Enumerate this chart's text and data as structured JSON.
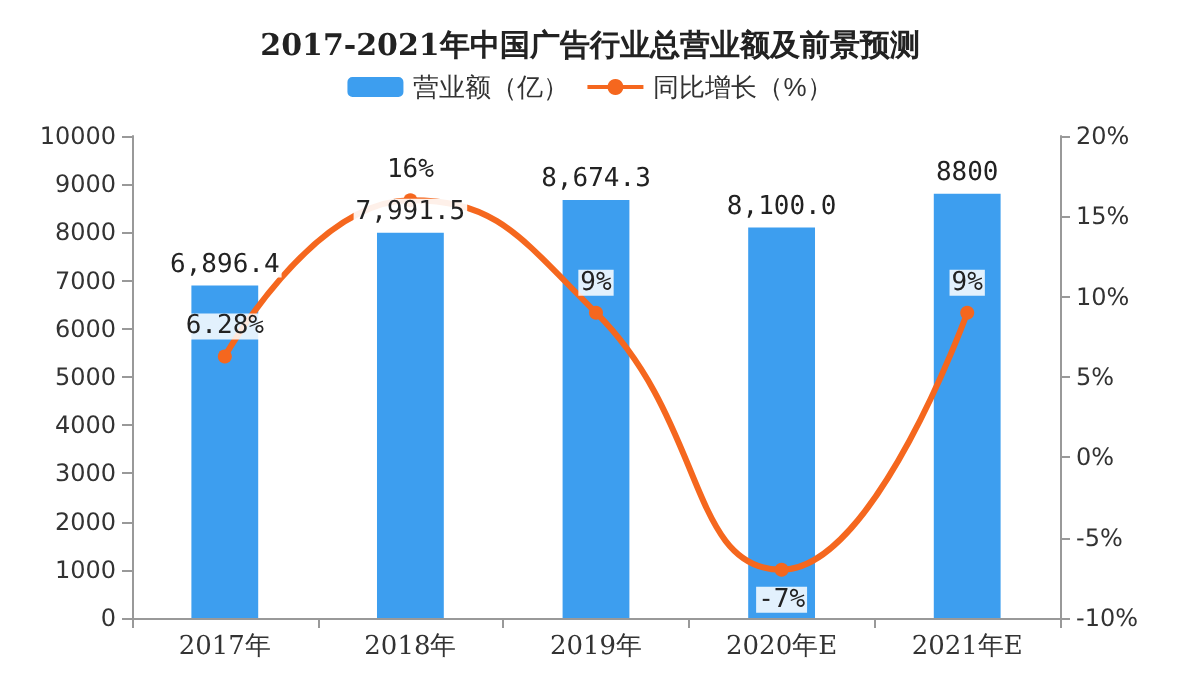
{
  "chart_data": {
    "type": "bar",
    "title": "2017-2021年中国广告行业总营业额及前景预测",
    "categories": [
      "2017年",
      "2018年",
      "2019年",
      "2020年E",
      "2021年E"
    ],
    "series": [
      {
        "name": "营业额（亿）",
        "color": "#3d9eef",
        "values": [
          6896.4,
          7991.5,
          8674.3,
          8100.0,
          8800
        ],
        "value_labels": [
          "6,896.4",
          "7,991.5",
          "8,674.3",
          "8,100.0",
          "8800"
        ]
      },
      {
        "name": "同比增长（%）",
        "type": "line",
        "axis": "y2",
        "color": "#f5671e",
        "values": [
          6.28,
          16,
          9,
          -7,
          9
        ],
        "value_labels": [
          "6.28%",
          "16%",
          "9%",
          "-7%",
          "9%"
        ]
      }
    ],
    "ylim": [
      0,
      10000
    ],
    "yticks": [
      0,
      1000,
      2000,
      3000,
      4000,
      5000,
      6000,
      7000,
      8000,
      9000,
      10000
    ],
    "y2lim": [
      -10,
      20
    ],
    "y2ticks": [
      {
        "value": -10,
        "label": "-10%"
      },
      {
        "value": -5,
        "label": "-5%"
      },
      {
        "value": 0,
        "label": "0%"
      },
      {
        "value": 5,
        "label": "5%"
      },
      {
        "value": 10,
        "label": "10%"
      },
      {
        "value": 15,
        "label": "15%"
      },
      {
        "value": 20,
        "label": "20%"
      }
    ],
    "grid": false,
    "legend": "top",
    "marker": "circle",
    "line_style": "solid"
  }
}
